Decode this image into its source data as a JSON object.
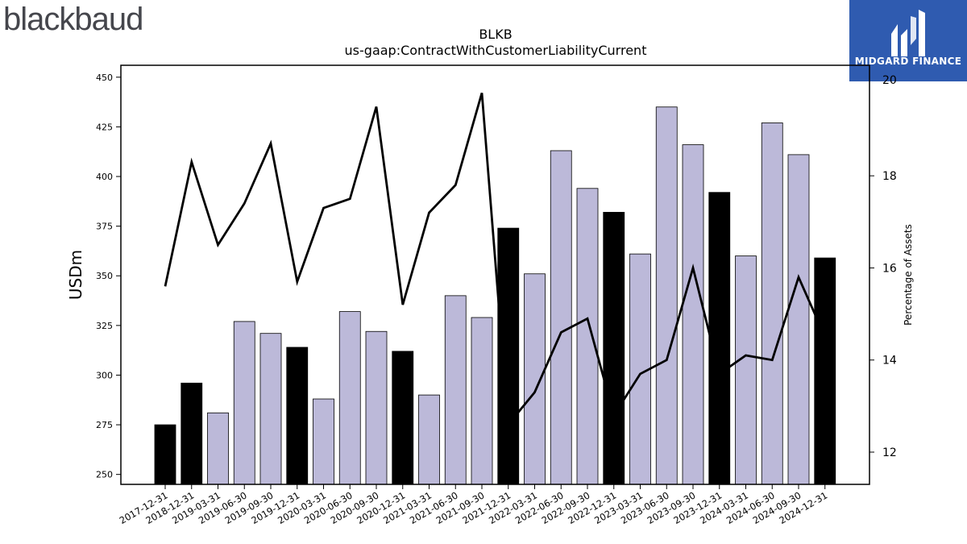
{
  "brand": {
    "logo_text": "blackbaud",
    "partner_name": "MIDGARD FINANCE"
  },
  "colors": {
    "bar_regular": "#bcb9d9",
    "bar_fiscal_year_end": "#000000",
    "line": "#000000",
    "badge_bg": "#2f5bb0"
  },
  "chart_data": {
    "type": "bar",
    "title": "BLKB",
    "subtitle": "us-gaap:ContractWithCustomerLiabilityCurrent",
    "xlabel": "",
    "ylabel": "USDm",
    "y2label": "Percentage of Assets",
    "ylim": [
      245,
      456
    ],
    "y2lim": [
      11.3,
      20.4
    ],
    "yticks": [
      250,
      275,
      300,
      325,
      350,
      375,
      400,
      425,
      450
    ],
    "y2ticks": [
      12,
      14,
      16,
      18
    ],
    "y2_top_partial_label": "20",
    "categories": [
      "2017-12-31",
      "2018-12-31",
      "2019-03-31",
      "2019-06-30",
      "2019-09-30",
      "2019-12-31",
      "2020-03-31",
      "2020-06-30",
      "2020-09-30",
      "2020-12-31",
      "2021-03-31",
      "2021-06-30",
      "2021-09-30",
      "2021-12-31",
      "2022-03-31",
      "2022-06-30",
      "2022-09-30",
      "2022-12-31",
      "2023-03-31",
      "2023-06-30",
      "2023-09-30",
      "2023-12-31",
      "2024-03-31",
      "2024-06-30",
      "2024-09-30",
      "2024-12-31"
    ],
    "series": [
      {
        "type": "bar",
        "axis": "left",
        "values": [
          275,
          296,
          281,
          327,
          321,
          314,
          288,
          332,
          322,
          312,
          290,
          340,
          329,
          374,
          351,
          413,
          394,
          382,
          361,
          435,
          416,
          392,
          360,
          427,
          411,
          359
        ],
        "fiscal_year_end": [
          true,
          true,
          false,
          false,
          false,
          true,
          false,
          false,
          false,
          true,
          false,
          false,
          false,
          true,
          false,
          false,
          false,
          true,
          false,
          false,
          false,
          true,
          false,
          false,
          false,
          true
        ]
      },
      {
        "type": "line",
        "axis": "right",
        "values": [
          15.6,
          18.3,
          16.5,
          17.4,
          18.7,
          15.7,
          17.3,
          17.5,
          19.5,
          15.2,
          17.2,
          17.8,
          19.8,
          12.6,
          13.3,
          14.6,
          14.9,
          12.8,
          13.7,
          14.0,
          16.0,
          13.7,
          14.1,
          14.0,
          15.8,
          14.5
        ]
      }
    ]
  }
}
